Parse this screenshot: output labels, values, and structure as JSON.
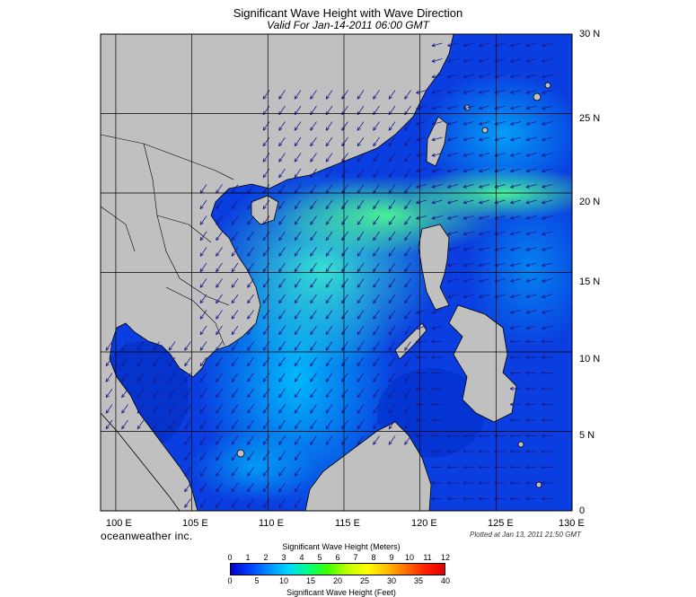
{
  "header": {
    "title": "Significant Wave Height with Wave Direction",
    "subtitle": "Valid For Jan-14-2011 06:00 GMT"
  },
  "map": {
    "lat_labels": [
      "30 N",
      "25 N",
      "20 N",
      "15 N",
      "10 N",
      "5 N",
      "0"
    ],
    "lon_labels": [
      "100 E",
      "105 E",
      "110 E",
      "115 E",
      "120 E",
      "125 E",
      "130 E"
    ],
    "extent": {
      "lon_min": 99,
      "lon_max": 130,
      "lat_min": 0,
      "lat_max": 30
    },
    "colors": {
      "land": "#c0c0c0",
      "grid": "#000000",
      "arrow": "#1a1a8c"
    }
  },
  "footer": {
    "brand": "oceanweather inc.",
    "plotted": "Plotted at Jan 13, 2011 21:50 GMT"
  },
  "legend": {
    "meters_title": "Significant Wave Height (Meters)",
    "feet_title": "Significant Wave Height (Feet)",
    "meters_ticks": [
      "0",
      "1",
      "2",
      "3",
      "4",
      "5",
      "6",
      "7",
      "8",
      "9",
      "10",
      "11",
      "12"
    ],
    "feet_ticks": [
      "0",
      "5",
      "10",
      "15",
      "20",
      "25",
      "30",
      "35",
      "40"
    ],
    "colors": [
      "#0000c8",
      "#0040ff",
      "#0090ff",
      "#00d8ff",
      "#00ff80",
      "#40ff00",
      "#c0ff00",
      "#ffff00",
      "#ffc000",
      "#ff7000",
      "#ff2000",
      "#e00000"
    ]
  }
}
